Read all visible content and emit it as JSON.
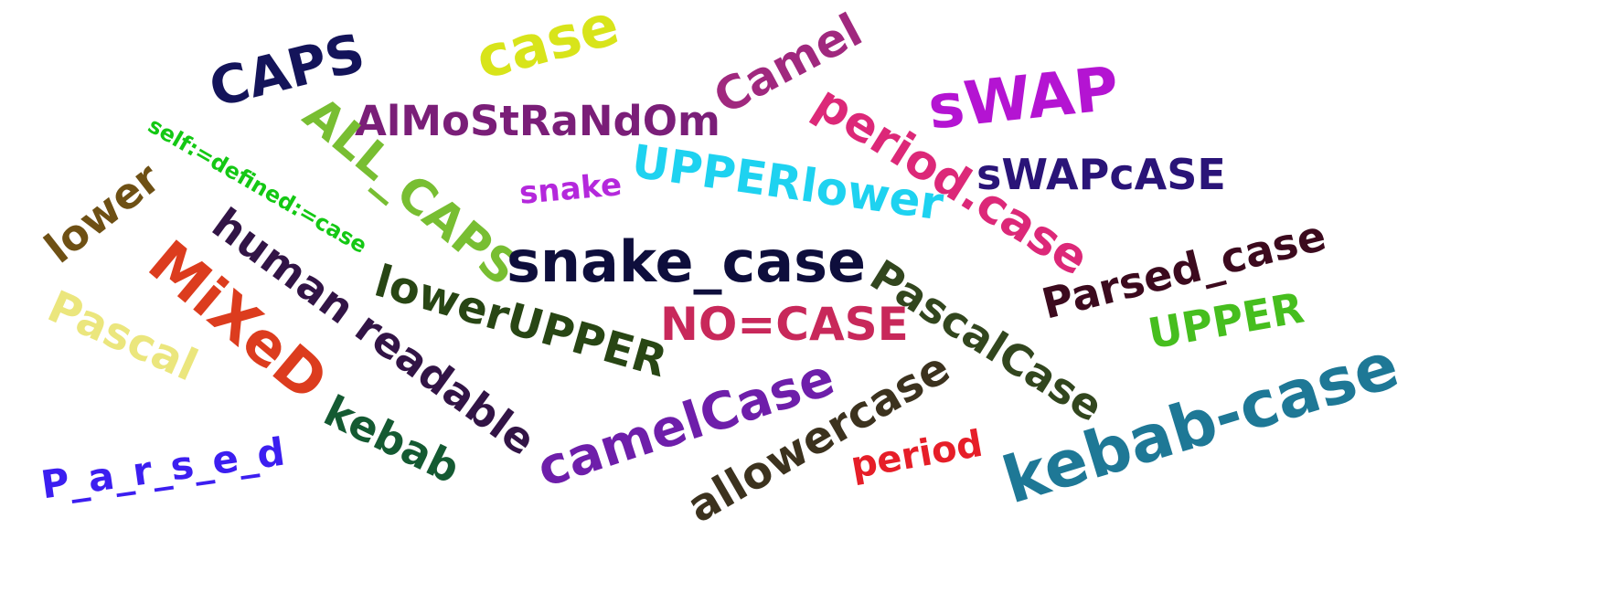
{
  "words": [
    {
      "text": "case",
      "color": "#d8e41a"
    },
    {
      "text": "CAPS",
      "color": "#14145a"
    },
    {
      "text": "Camel",
      "color": "#a0287e"
    },
    {
      "text": "sWAP",
      "color": "#b414d2"
    },
    {
      "text": "AlMoStRaNdOm",
      "color": "#7a1e78"
    },
    {
      "text": "self:=defined:=case",
      "color": "#14c814"
    },
    {
      "text": "ALL_CAPS",
      "color": "#78be32"
    },
    {
      "text": "period.case",
      "color": "#dc2878"
    },
    {
      "text": "sWAPcASE",
      "color": "#2a1478"
    },
    {
      "text": "UPPERlower",
      "color": "#1ed2f0"
    },
    {
      "text": "snake",
      "color": "#b428dc"
    },
    {
      "text": "lower",
      "color": "#6e5014"
    },
    {
      "text": "snake_case",
      "color": "#0e0e3c"
    },
    {
      "text": "human readable",
      "color": "#321446"
    },
    {
      "text": "Parsed_case",
      "color": "#3c0a1e"
    },
    {
      "text": "MiXeD",
      "color": "#dc3c1e"
    },
    {
      "text": "lowerUPPER",
      "color": "#284614"
    },
    {
      "text": "NO=CASE",
      "color": "#c8285a"
    },
    {
      "text": "PascalCase",
      "color": "#32461e"
    },
    {
      "text": "UPPER",
      "color": "#46be1e"
    },
    {
      "text": "Pascal",
      "color": "#ebe67d"
    },
    {
      "text": "kebab-case",
      "color": "#1e7896"
    },
    {
      "text": "camelCase",
      "color": "#6e1eaa"
    },
    {
      "text": "allowercase",
      "color": "#3c321e"
    },
    {
      "text": "kebab",
      "color": "#145a32"
    },
    {
      "text": "period",
      "color": "#e61e28"
    },
    {
      "text": "P_a_r_s_e_d",
      "color": "#3c1ef0"
    }
  ]
}
